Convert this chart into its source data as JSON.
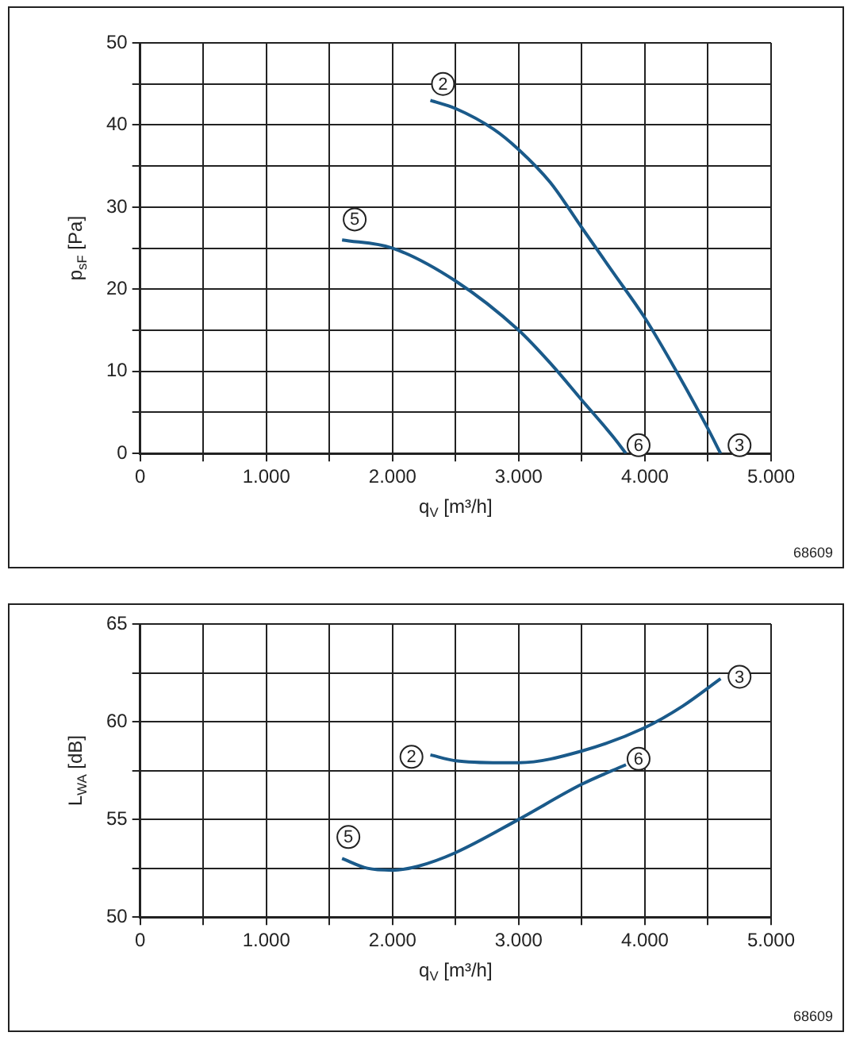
{
  "chart_data": [
    {
      "type": "line",
      "xlabel": "q$_{V}$ [m³/h]",
      "ylabel": "p$_{sF}$ [Pa]",
      "xlim": [
        0,
        5000
      ],
      "xticks": [
        0,
        {
          "value": 500,
          "label": null
        },
        {
          "value": 1000,
          "label": "1.000"
        },
        {
          "value": 1500,
          "label": null
        },
        {
          "value": 2000,
          "label": "2.000"
        },
        {
          "value": 2500,
          "label": null
        },
        {
          "value": 3000,
          "label": "3.000"
        },
        {
          "value": 3500,
          "label": null
        },
        {
          "value": 4000,
          "label": "4.000"
        },
        {
          "value": 4500,
          "label": null
        },
        {
          "value": 5000,
          "label": "5.000"
        }
      ],
      "ylim": [
        0,
        50
      ],
      "yticks": [
        0,
        {
          "value": 5,
          "label": null
        },
        10,
        {
          "value": 15,
          "label": null
        },
        20,
        {
          "value": 25,
          "label": null
        },
        30,
        {
          "value": 35,
          "label": null
        },
        40,
        {
          "value": 45,
          "label": null
        },
        50
      ],
      "grid": true,
      "legend": false,
      "marker": "none",
      "line_style": "solid",
      "series": [
        {
          "color": "#1a5a8a",
          "x": [
            2300,
            2500,
            2800,
            3000,
            3250,
            3500,
            3750,
            4000,
            4250,
            4500,
            4600
          ],
          "values": [
            43,
            42,
            39.5,
            37,
            33,
            27.5,
            22,
            16.5,
            10,
            3,
            0
          ]
        },
        {
          "color": "#1a5a8a",
          "x": [
            1600,
            2000,
            2500,
            3000,
            3250,
            3500,
            3750,
            3850
          ],
          "values": [
            26,
            25,
            21,
            15,
            11,
            6.5,
            2,
            0
          ]
        }
      ],
      "annotations": [
        {
          "text": "2",
          "x": 2400,
          "y": 45
        },
        {
          "text": "3",
          "x": 4750,
          "y": 1
        },
        {
          "text": "5",
          "x": 1700,
          "y": 28.5
        },
        {
          "text": "6",
          "x": 3950,
          "y": 1
        },
        "68609"
      ]
    },
    {
      "type": "line",
      "xlabel": "q$_{V}$ [m³/h]",
      "ylabel": "L$_{WA}$ [dB]",
      "xlim": [
        0,
        5000
      ],
      "xticks": [
        0,
        {
          "value": 500,
          "label": null
        },
        {
          "value": 1000,
          "label": "1.000"
        },
        {
          "value": 1500,
          "label": null
        },
        {
          "value": 2000,
          "label": "2.000"
        },
        {
          "value": 2500,
          "label": null
        },
        {
          "value": 3000,
          "label": "3.000"
        },
        {
          "value": 3500,
          "label": null
        },
        {
          "value": 4000,
          "label": "4.000"
        },
        {
          "value": 4500,
          "label": null
        },
        {
          "value": 5000,
          "label": "5.000"
        }
      ],
      "ylim": [
        50,
        65
      ],
      "yticks": [
        50,
        {
          "value": 52.5,
          "label": null
        },
        55,
        {
          "value": 57.5,
          "label": null
        },
        60,
        {
          "value": 62.5,
          "label": null
        },
        65
      ],
      "grid": true,
      "legend": false,
      "marker": "none",
      "line_style": "solid",
      "series": [
        {
          "color": "#1a5a8a",
          "x": [
            2300,
            2500,
            2850,
            3000,
            3500,
            4000,
            4300,
            4600
          ],
          "values": [
            58.3,
            58.0,
            57.9,
            57.9,
            58.5,
            59.7,
            60.8,
            62.2
          ]
        },
        {
          "color": "#1a5a8a",
          "x": [
            1600,
            1800,
            2000,
            2200,
            2500,
            3000,
            3500,
            3850
          ],
          "values": [
            53,
            52.5,
            52.4,
            52.6,
            53.3,
            55,
            56.8,
            57.8
          ]
        }
      ],
      "annotations": [
        {
          "text": "2",
          "x": 2150,
          "y": 58.2
        },
        {
          "text": "3",
          "x": 4750,
          "y": 62.3
        },
        {
          "text": "5",
          "x": 1650,
          "y": 54.1
        },
        {
          "text": "6",
          "x": 3950,
          "y": 58.1
        },
        "68609"
      ]
    }
  ]
}
